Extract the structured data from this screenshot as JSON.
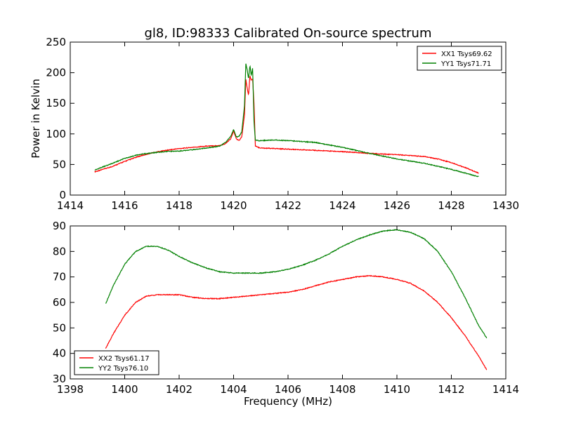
{
  "chart_data": [
    {
      "type": "line",
      "title": "gl8, ID:98333 Calibrated On-source spectrum",
      "xlabel": "",
      "ylabel": "Power in Kelvin",
      "xlim": [
        1414,
        1430
      ],
      "ylim": [
        0,
        250
      ],
      "xticks": [
        1414,
        1416,
        1418,
        1420,
        1422,
        1424,
        1426,
        1428,
        1430
      ],
      "yticks": [
        0,
        50,
        100,
        150,
        200,
        250
      ],
      "grid": false,
      "legend_position": "top-right",
      "series": [
        {
          "name": "XX1 Tsys69.62",
          "color": "#ff0000",
          "x": [
            1414.9,
            1415.5,
            1416,
            1416.5,
            1417,
            1417.5,
            1418,
            1418.5,
            1419,
            1419.5,
            1419.7,
            1419.9,
            1420.0,
            1420.1,
            1420.2,
            1420.3,
            1420.4,
            1420.45,
            1420.5,
            1420.55,
            1420.6,
            1420.65,
            1420.7,
            1420.75,
            1420.8,
            1420.9,
            1421.0,
            1421.5,
            1422,
            1423,
            1424,
            1425,
            1426,
            1427,
            1427.5,
            1428,
            1428.5,
            1429.0
          ],
          "y": [
            38,
            46,
            55,
            63,
            69,
            73,
            76,
            78,
            80,
            81,
            84,
            92,
            105,
            92,
            89,
            95,
            130,
            190,
            175,
            163,
            195,
            188,
            190,
            150,
            80,
            78,
            77,
            76,
            75,
            73,
            71,
            68,
            66,
            63,
            59,
            53,
            45,
            36
          ]
        },
        {
          "name": "YY1 Tsys71.71",
          "color": "#008000",
          "x": [
            1414.9,
            1415.5,
            1416,
            1416.5,
            1417,
            1417.5,
            1418,
            1418.5,
            1419,
            1419.5,
            1419.7,
            1419.9,
            1420.0,
            1420.1,
            1420.2,
            1420.3,
            1420.4,
            1420.45,
            1420.5,
            1420.55,
            1420.6,
            1420.65,
            1420.7,
            1420.75,
            1420.8,
            1420.9,
            1421.0,
            1421.5,
            1422,
            1423,
            1424,
            1425,
            1426,
            1427,
            1427.5,
            1428,
            1428.5,
            1429.0
          ],
          "y": [
            41,
            51,
            60,
            66,
            69,
            71,
            72,
            74,
            77,
            80,
            86,
            96,
            107,
            95,
            96,
            103,
            145,
            215,
            205,
            190,
            212,
            195,
            208,
            120,
            90,
            89,
            89,
            90,
            89,
            86,
            78,
            68,
            59,
            52,
            47,
            42,
            36,
            30
          ]
        }
      ]
    },
    {
      "type": "line",
      "title": "",
      "xlabel": "Frequency (MHz)",
      "ylabel": "",
      "xlim": [
        1398,
        1414
      ],
      "ylim": [
        30,
        90
      ],
      "xticks": [
        1398,
        1400,
        1402,
        1404,
        1406,
        1408,
        1410,
        1412,
        1414
      ],
      "yticks": [
        30,
        40,
        50,
        60,
        70,
        80,
        90
      ],
      "grid": false,
      "legend_position": "bottom-left",
      "series": [
        {
          "name": "XX2 Tsys61.17",
          "color": "#ff0000",
          "x": [
            1399.3,
            1399.6,
            1400,
            1400.4,
            1400.8,
            1401.2,
            1401.6,
            1402,
            1402.5,
            1403,
            1403.5,
            1404,
            1404.5,
            1405,
            1405.5,
            1406,
            1406.5,
            1407,
            1407.5,
            1408,
            1408.5,
            1409,
            1409.5,
            1410,
            1410.5,
            1411,
            1411.5,
            1412,
            1412.5,
            1413,
            1413.3
          ],
          "y": [
            42,
            48,
            55,
            60,
            62.5,
            63,
            63,
            63,
            62,
            61.5,
            61.5,
            62,
            62.5,
            63,
            63.5,
            64,
            65,
            66.5,
            68,
            69,
            70,
            70.5,
            70,
            69,
            67.5,
            64.5,
            60,
            54,
            47,
            39,
            33.5
          ]
        },
        {
          "name": "YY2 Tsys76.10",
          "color": "#008000",
          "x": [
            1399.3,
            1399.6,
            1400,
            1400.4,
            1400.8,
            1401.2,
            1401.6,
            1402,
            1402.5,
            1403,
            1403.5,
            1404,
            1404.5,
            1405,
            1405.5,
            1406,
            1406.5,
            1407,
            1407.5,
            1408,
            1408.5,
            1409,
            1409.5,
            1410,
            1410.5,
            1411,
            1411.5,
            1412,
            1412.5,
            1413,
            1413.3
          ],
          "y": [
            59.5,
            67,
            75,
            80,
            82,
            82,
            80.5,
            78,
            75.5,
            73.5,
            72,
            71.5,
            71.5,
            71.5,
            72,
            73,
            74.5,
            76.5,
            79,
            82,
            84.5,
            86.5,
            88,
            88.5,
            87.5,
            85,
            80,
            72,
            62,
            51,
            46
          ]
        }
      ]
    }
  ]
}
